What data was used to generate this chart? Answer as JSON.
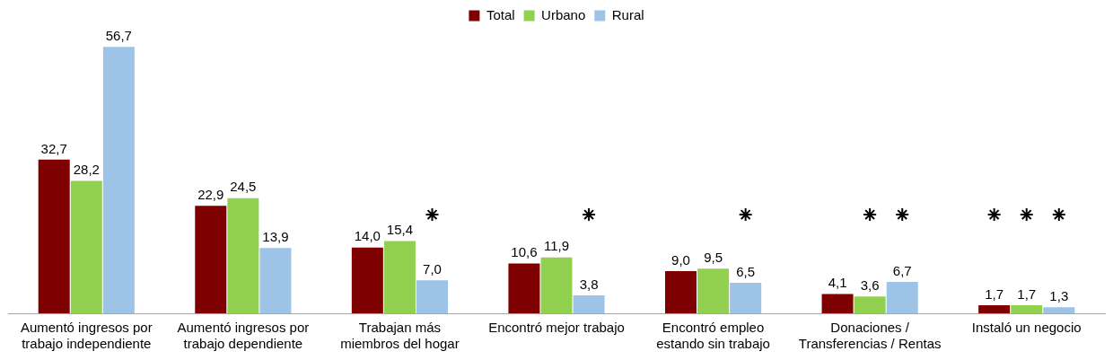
{
  "chart_data": {
    "type": "bar",
    "categories": [
      "Aumentó ingresos por trabajo independiente",
      "Aumentó ingresos por trabajo dependiente",
      "Trabajan más miembros del hogar",
      "Encontró mejor trabajo",
      "Encontró empleo estando sin trabajo",
      "Donaciones / Transferencias / Rentas",
      "Instaló un negocio"
    ],
    "series": [
      {
        "name": "Total",
        "color": "#7f0000",
        "values": [
          32.7,
          22.9,
          14.0,
          10.6,
          9.0,
          4.1,
          1.7
        ],
        "value_labels": [
          "32,7",
          "22,9",
          "14,0",
          "10,6",
          "9,0",
          "4,1",
          "1,7"
        ]
      },
      {
        "name": "Urbano",
        "color": "#92d050",
        "values": [
          28.2,
          24.5,
          15.4,
          11.9,
          9.5,
          3.6,
          1.7
        ],
        "value_labels": [
          "28,2",
          "24,5",
          "15,4",
          "11,9",
          "9,5",
          "3,6",
          "1,7"
        ]
      },
      {
        "name": "Rural",
        "color": "#9dc3e6",
        "values": [
          56.7,
          13.9,
          7.0,
          3.8,
          6.5,
          6.7,
          1.3
        ],
        "value_labels": [
          "56,7",
          "13,9",
          "7,0",
          "3,8",
          "6,5",
          "6,7",
          "1,3"
        ]
      },
      {
        "type": "scatter",
        "color": "#000000",
        "values": [
          null,
          null,
          null,
          null,
          null,
          null,
          21
        ]
      },
      {
        "type": "scatter",
        "color": "#000000",
        "values": [
          null,
          null,
          null,
          null,
          null,
          21,
          21
        ]
      },
      {
        "type": "scatter",
        "color": "#000000",
        "values": [
          null,
          null,
          21,
          21,
          21,
          21,
          21
        ]
      }
    ],
    "grid": false,
    "legend": "top",
    "marker": "cross"
  }
}
